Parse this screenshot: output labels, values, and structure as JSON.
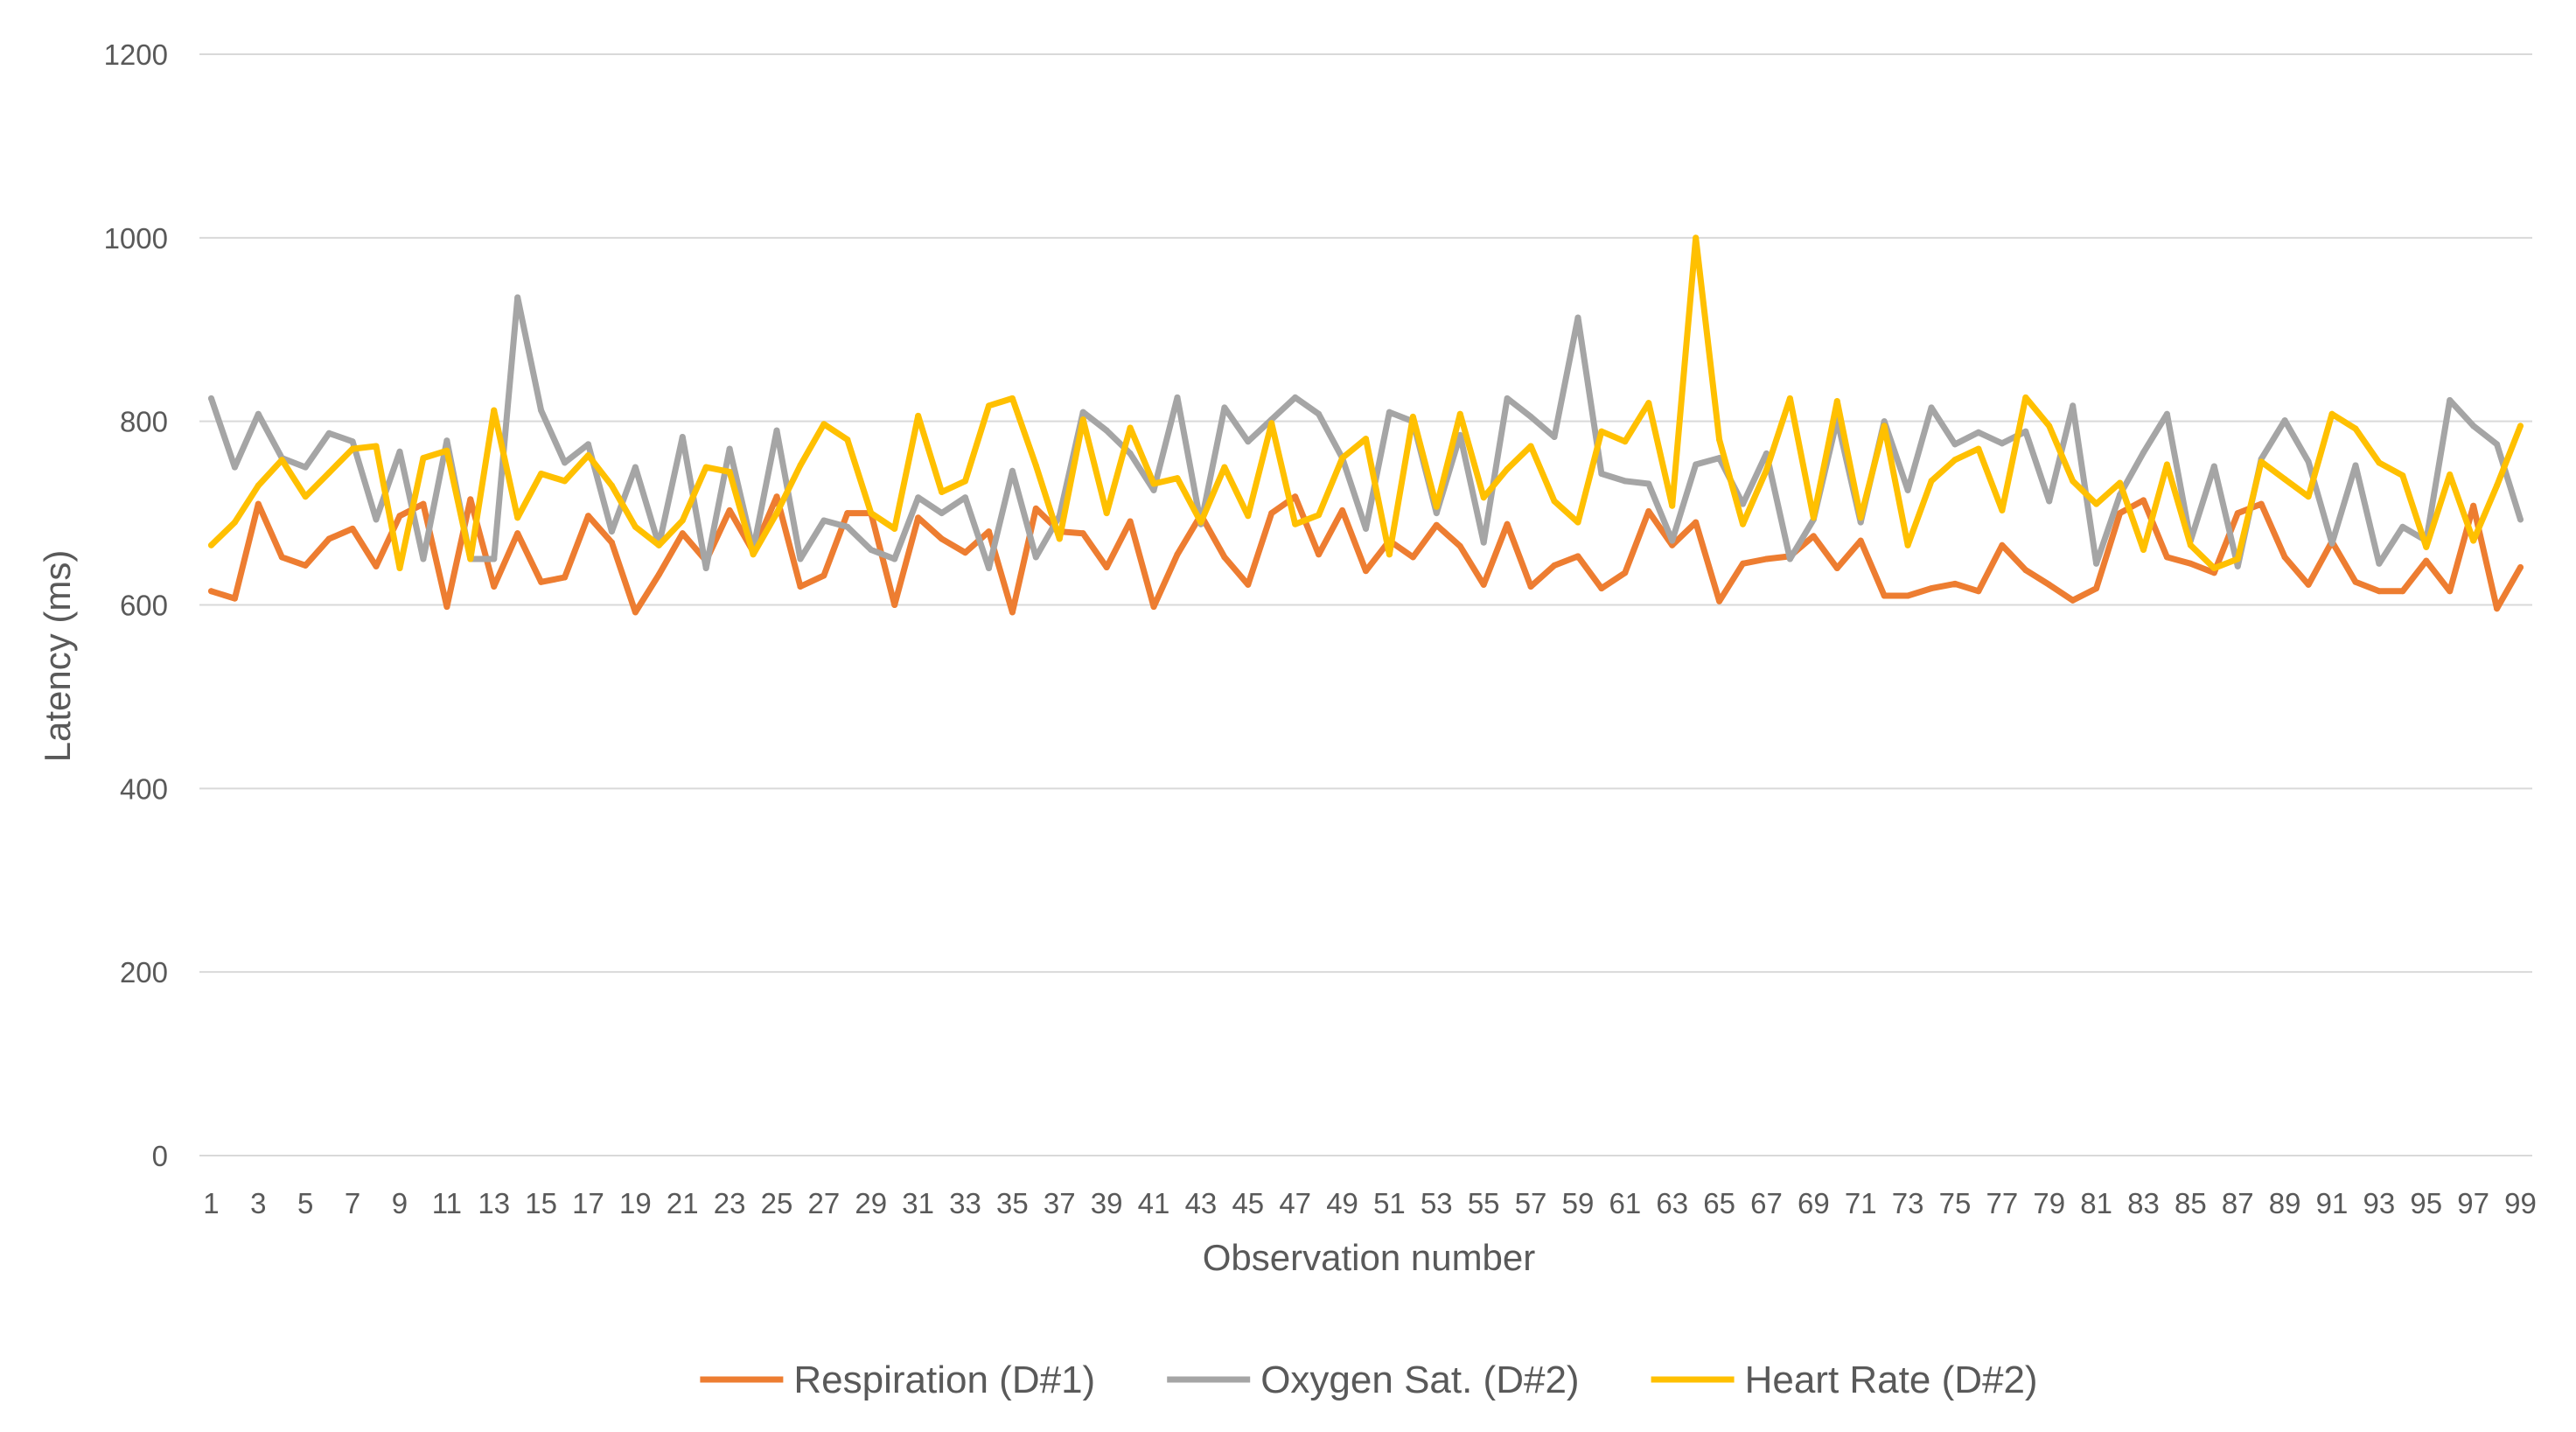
{
  "chart_data": {
    "type": "line",
    "title": "",
    "xlabel": "Observation number",
    "ylabel": "Latency (ms)",
    "ylim": [
      0,
      1200
    ],
    "yticks": [
      0,
      200,
      400,
      600,
      800,
      1000,
      1200
    ],
    "grid": true,
    "legend_position": "bottom",
    "x": [
      1,
      2,
      3,
      4,
      5,
      6,
      7,
      8,
      9,
      10,
      11,
      12,
      13,
      14,
      15,
      16,
      17,
      18,
      19,
      20,
      21,
      22,
      23,
      24,
      25,
      26,
      27,
      28,
      29,
      30,
      31,
      32,
      33,
      34,
      35,
      36,
      37,
      38,
      39,
      40,
      41,
      42,
      43,
      44,
      45,
      46,
      47,
      48,
      49,
      50,
      51,
      52,
      53,
      54,
      55,
      56,
      57,
      58,
      59,
      60,
      61,
      62,
      63,
      64,
      65,
      66,
      67,
      68,
      69,
      70,
      71,
      72,
      73,
      74,
      75,
      76,
      77,
      78,
      79,
      80,
      81,
      82,
      83,
      84,
      85,
      86,
      87,
      88,
      89,
      90,
      91,
      92,
      93,
      94,
      95,
      96,
      97,
      98,
      99
    ],
    "x_tick_labels": [
      "1",
      "3",
      "5",
      "7",
      "9",
      "11",
      "13",
      "15",
      "17",
      "19",
      "21",
      "23",
      "25",
      "27",
      "29",
      "31",
      "33",
      "35",
      "37",
      "39",
      "41",
      "43",
      "45",
      "47",
      "49",
      "51",
      "53",
      "55",
      "57",
      "59",
      "61",
      "63",
      "65",
      "67",
      "69",
      "71",
      "73",
      "75",
      "77",
      "79",
      "81",
      "83",
      "85",
      "87",
      "89",
      "91",
      "93",
      "95",
      "97",
      "99"
    ],
    "series": [
      {
        "name": "Respiration (D#1)",
        "color": "#ED7D31",
        "values": [
          615,
          607,
          710,
          652,
          643,
          672,
          683,
          642,
          697,
          710,
          598,
          715,
          620,
          678,
          625,
          630,
          697,
          668,
          592,
          633,
          678,
          648,
          703,
          658,
          718,
          620,
          632,
          700,
          700,
          600,
          695,
          672,
          657,
          680,
          592,
          705,
          680,
          678,
          641,
          691,
          598,
          655,
          698,
          652,
          622,
          700,
          718,
          655,
          703,
          637,
          670,
          652,
          687,
          664,
          622,
          688,
          620,
          643,
          653,
          618,
          635,
          702,
          665,
          690,
          604,
          645,
          650,
          653,
          675,
          640,
          670,
          610,
          610,
          618,
          623,
          615,
          665,
          638,
          622,
          605,
          618,
          700,
          714,
          652,
          645,
          635,
          700,
          710,
          652,
          622,
          669,
          625,
          615,
          615,
          648,
          615,
          708,
          596,
          641
        ]
      },
      {
        "name": "Oxygen Sat. (D#2)",
        "color": "#A5A5A5",
        "values": [
          825,
          750,
          808,
          760,
          750,
          787,
          778,
          693,
          767,
          650,
          779,
          650,
          650,
          935,
          812,
          755,
          775,
          680,
          750,
          665,
          783,
          640,
          770,
          660,
          790,
          650,
          692,
          685,
          660,
          650,
          717,
          700,
          717,
          640,
          746,
          652,
          697,
          810,
          790,
          765,
          725,
          826,
          688,
          815,
          778,
          802,
          826,
          808,
          760,
          683,
          810,
          800,
          700,
          785,
          668,
          825,
          805,
          783,
          913,
          743,
          735,
          732,
          670,
          753,
          760,
          710,
          765,
          650,
          693,
          802,
          690,
          800,
          725,
          815,
          775,
          788,
          776,
          789,
          713,
          817,
          645,
          720,
          766,
          808,
          670,
          751,
          642,
          759,
          801,
          756,
          667,
          752,
          645,
          685,
          670,
          823,
          795,
          775,
          693
        ]
      },
      {
        "name": "Heart Rate (D#2)",
        "color": "#FFC000",
        "values": [
          665,
          690,
          730,
          758,
          718,
          744,
          770,
          773,
          640,
          760,
          768,
          650,
          812,
          695,
          743,
          735,
          763,
          730,
          685,
          665,
          692,
          750,
          745,
          655,
          700,
          752,
          797,
          780,
          700,
          683,
          806,
          723,
          735,
          817,
          825,
          752,
          672,
          802,
          700,
          793,
          732,
          738,
          690,
          750,
          697,
          798,
          688,
          698,
          760,
          781,
          655,
          805,
          707,
          808,
          717,
          748,
          773,
          713,
          690,
          789,
          778,
          820,
          708,
          1000,
          780,
          688,
          747,
          825,
          695,
          822,
          695,
          795,
          665,
          735,
          758,
          770,
          703,
          826,
          795,
          735,
          710,
          733,
          660,
          753,
          665,
          640,
          650,
          756,
          737,
          718,
          808,
          792,
          755,
          741,
          663,
          742,
          670,
          730,
          795
        ]
      }
    ]
  }
}
